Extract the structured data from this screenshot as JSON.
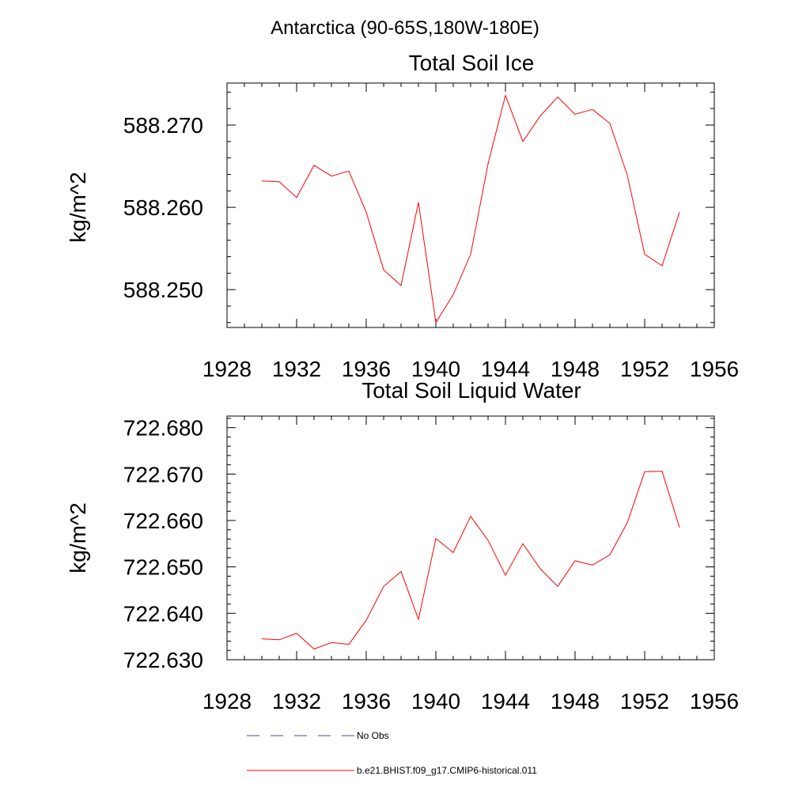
{
  "suptitle": "Antarctica (90-65S,180W-180E)",
  "legend": {
    "items": [
      {
        "label": "No Obs",
        "color": "#000000",
        "dash": true
      },
      {
        "label": "b.e21.BHIST.f09_g17.CMIP6-historical.011",
        "color": "#ff0000",
        "dash": false
      }
    ]
  },
  "chart_data": [
    {
      "type": "line",
      "title": "Total Soil Ice",
      "ylabel": "kg/m^2",
      "xlim": [
        1928,
        1956
      ],
      "ylim": [
        588.2454,
        588.2751
      ],
      "xticks": [
        "1928",
        "1932",
        "1936",
        "1940",
        "1944",
        "1948",
        "1952",
        "1956"
      ],
      "yticks": [
        "588.250",
        "588.260",
        "588.270"
      ],
      "series": [
        {
          "name": "b.e21.BHIST.f09_g17.CMIP6-historical.011",
          "color": "#ff0000",
          "x": [
            1930,
            1931,
            1932,
            1933,
            1934,
            1935,
            1936,
            1937,
            1938,
            1939,
            1940,
            1941,
            1942,
            1943,
            1944,
            1945,
            1946,
            1947,
            1948,
            1949,
            1950,
            1951,
            1952,
            1953,
            1954
          ],
          "values": [
            588.2632,
            588.2631,
            588.2612,
            588.2651,
            588.2638,
            588.2644,
            588.2594,
            588.2524,
            588.2505,
            588.2606,
            588.246,
            588.2494,
            588.2543,
            588.2653,
            588.2736,
            588.268,
            588.2711,
            588.2734,
            588.2713,
            588.2719,
            588.2702,
            588.2639,
            588.2543,
            588.2529,
            588.2594
          ]
        }
      ]
    },
    {
      "type": "line",
      "title": "Total Soil Liquid Water",
      "ylabel": "kg/m^2",
      "xlim": [
        1928,
        1956
      ],
      "ylim": [
        722.63,
        722.6825
      ],
      "xticks": [
        "1928",
        "1932",
        "1936",
        "1940",
        "1944",
        "1948",
        "1952",
        "1956"
      ],
      "yticks": [
        "722.630",
        "722.640",
        "722.650",
        "722.660",
        "722.670",
        "722.680"
      ],
      "series": [
        {
          "name": "b.e21.BHIST.f09_g17.CMIP6-historical.011",
          "color": "#ff0000",
          "x": [
            1930,
            1931,
            1932,
            1933,
            1934,
            1935,
            1936,
            1937,
            1938,
            1939,
            1940,
            1941,
            1942,
            1943,
            1944,
            1945,
            1946,
            1947,
            1948,
            1949,
            1950,
            1951,
            1952,
            1953,
            1954
          ],
          "values": [
            722.6345,
            722.6343,
            722.6357,
            722.6323,
            722.6337,
            722.6333,
            722.6385,
            722.6458,
            722.649,
            722.6387,
            722.6561,
            722.6531,
            722.6609,
            722.6557,
            722.6482,
            722.655,
            722.6496,
            722.6458,
            722.6513,
            722.6504,
            722.6526,
            722.6595,
            722.6705,
            722.6706,
            722.6585
          ]
        }
      ]
    }
  ]
}
